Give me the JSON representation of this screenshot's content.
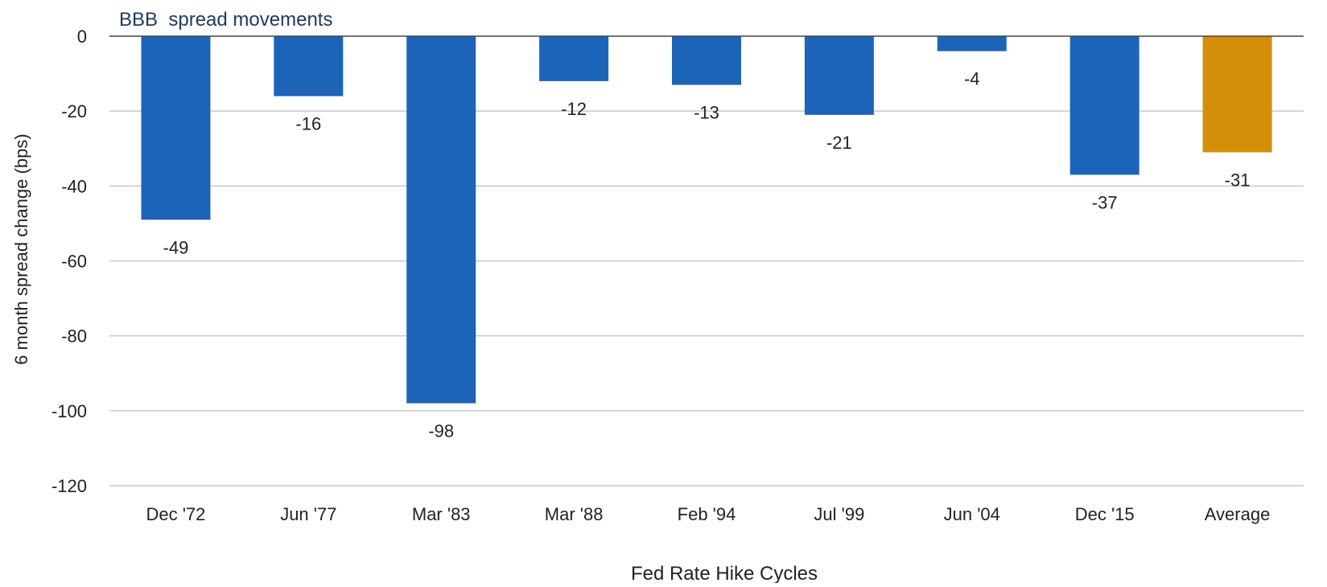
{
  "chart_data": {
    "type": "bar",
    "title": "BBB  spread movements",
    "xlabel": "Fed Rate Hike Cycles",
    "ylabel": "6 month spread change (bps)",
    "categories": [
      "Dec '72",
      "Jun '77",
      "Mar '83",
      "Mar '88",
      "Feb '94",
      "Jul '99",
      "Jun '04",
      "Dec '15",
      "Average"
    ],
    "series": [
      {
        "values": [
          -49,
          -16,
          -98,
          -12,
          -13,
          -21,
          -4,
          -37,
          -31
        ],
        "data_labels": [
          "-49",
          "-16",
          "-98",
          "-12",
          "-13",
          "-21",
          "-4",
          "-37",
          "-31"
        ]
      }
    ],
    "ylim": [
      -120,
      0
    ],
    "yticks": [
      0,
      -20,
      -40,
      -60,
      -80,
      -100,
      -120
    ],
    "grid": true,
    "legend": "none",
    "colors": {
      "bar": "#1c64b8",
      "highlight_bar": "#d38f07",
      "title": "#1f3b63",
      "text": "#222222",
      "grid": "#c8c8c8",
      "zero_line": "#444444"
    },
    "highlight_index": 8
  }
}
